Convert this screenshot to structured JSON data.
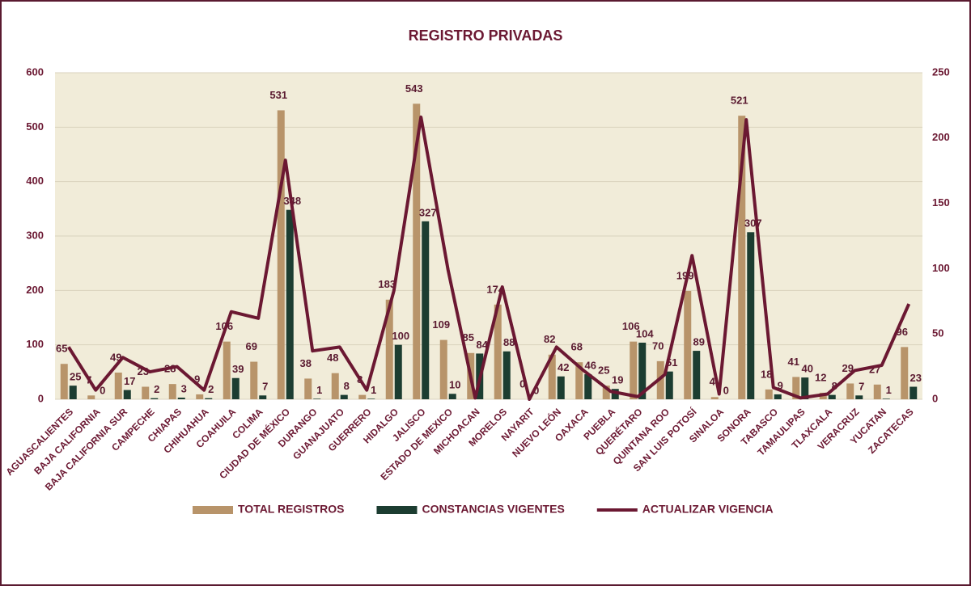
{
  "chart_data": {
    "type": "bar-line",
    "title": "REGISTRO PRIVADAS",
    "categories": [
      "AGUASCALIENTES",
      "BAJA CALIFORNIA",
      "BAJA CALIFORNIA SUR",
      "CAMPECHE",
      "CHIAPAS",
      "CHIHUAHUA",
      "COAHUILA",
      "COLIMA",
      "CIUDAD DE MÉXICO",
      "DURANGO",
      "GUANAJUATO",
      "GUERRERO",
      "HIDALGO",
      "JALISCO",
      "ESTADO DE MEXICO",
      "MICHOACAN",
      "MORELOS",
      "NAYARIT",
      "NUEVO LEÓN",
      "OAXACA",
      "PUEBLA",
      "QUERÉTARO",
      "QUINTANA ROO",
      "SAN LUIS POTOSÍ",
      "SINALOA",
      "SONORA",
      "TABASCO",
      "TAMAULIPAS",
      "TLAXCALA",
      "VERACRUZ",
      "YUCATAN",
      "ZACATECAS"
    ],
    "series": [
      {
        "name": "TOTAL REGISTROS",
        "color": "#b8946a",
        "kind": "bar",
        "values": [
          65,
          7,
          49,
          23,
          28,
          9,
          106,
          69,
          531,
          38,
          48,
          8,
          183,
          543,
          109,
          85,
          174,
          0,
          82,
          68,
          25,
          106,
          70,
          199,
          4,
          521,
          18,
          41,
          12,
          29,
          27,
          96
        ]
      },
      {
        "name": "CONSTANCIAS VIGENTES",
        "color": "#1c3d31",
        "kind": "bar",
        "values": [
          25,
          0,
          17,
          2,
          3,
          2,
          39,
          7,
          348,
          1,
          8,
          1,
          100,
          327,
          10,
          84,
          88,
          0,
          42,
          46,
          19,
          104,
          51,
          89,
          0,
          307,
          9,
          40,
          8,
          7,
          1,
          23
        ]
      },
      {
        "name": "ACTUALIZAR VIGENCIA",
        "color": "#6b1832",
        "kind": "line",
        "axis": "y2",
        "values": [
          40,
          7,
          32,
          21,
          25,
          7,
          67,
          62,
          183,
          37,
          40,
          7,
          83,
          216,
          99,
          1,
          86,
          0,
          40,
          22,
          6,
          2,
          19,
          110,
          4,
          214,
          9,
          1,
          4,
          22,
          26,
          73
        ]
      }
    ],
    "ylim": [
      0,
      600
    ],
    "yticks": [
      0,
      100,
      200,
      300,
      400,
      500,
      600
    ],
    "y2lim": [
      0,
      250
    ],
    "y2ticks": [
      0,
      50,
      100,
      150,
      200,
      250
    ],
    "legend": "bottom"
  }
}
